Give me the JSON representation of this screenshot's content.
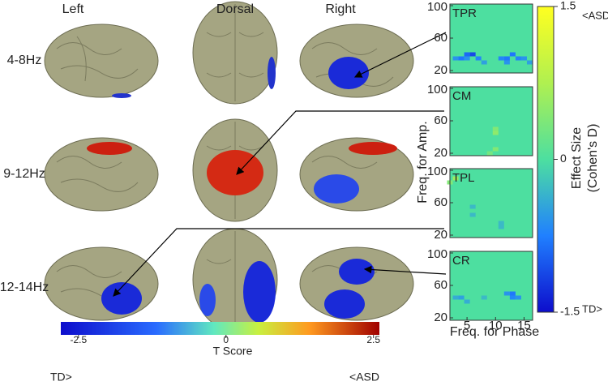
{
  "columns": [
    "Left",
    "Dorsal",
    "Right"
  ],
  "rows": [
    "4-8Hz",
    "9-12Hz",
    "12-14Hz"
  ],
  "t_colorbar": {
    "lim": [
      -2.8,
      2.6
    ],
    "ticks": [
      -2.5,
      0,
      2.5
    ],
    "label": "T Score",
    "left_note": "TD>",
    "right_note": "<ASD"
  },
  "heatmaps": {
    "xlim": [
      2,
      16.5
    ],
    "ylim": [
      17,
      102
    ],
    "xticks": [
      5,
      10,
      15
    ],
    "yticks": [
      20,
      60,
      100
    ],
    "ylabel": "Freq. for Amp.",
    "xlabel": "Freq. for Phase",
    "background": 0,
    "panels": [
      {
        "label": "TPR",
        "cells": [
          [
            3,
            35,
            -0.6
          ],
          [
            4,
            35,
            -0.8
          ],
          [
            5,
            35,
            -0.6
          ],
          [
            5,
            40,
            -0.9
          ],
          [
            6,
            40,
            -1.1
          ],
          [
            7,
            35,
            -0.7
          ],
          [
            8,
            30,
            -0.5
          ],
          [
            11,
            35,
            -0.7
          ],
          [
            12,
            30,
            -0.6
          ],
          [
            12,
            35,
            -0.8
          ],
          [
            13,
            40,
            -0.8
          ],
          [
            14,
            35,
            -0.7
          ],
          [
            15,
            35,
            -0.6
          ],
          [
            16,
            30,
            -0.5
          ]
        ]
      },
      {
        "label": "CM",
        "cells": [
          [
            10,
            50,
            0.4
          ],
          [
            10,
            45,
            0.5
          ],
          [
            10,
            25,
            0.4
          ],
          [
            9,
            20,
            0.3
          ]
        ]
      },
      {
        "label": "TPL",
        "cells": [
          [
            2,
            85,
            0.4
          ],
          [
            3,
            90,
            0.6
          ],
          [
            6,
            55,
            -0.3
          ],
          [
            6,
            45,
            -0.3
          ],
          [
            11,
            35,
            -0.3
          ],
          [
            11,
            30,
            -0.3
          ]
        ]
      },
      {
        "label": "CR",
        "cells": [
          [
            3,
            45,
            -0.4
          ],
          [
            4,
            45,
            -0.5
          ],
          [
            5,
            40,
            -0.4
          ],
          [
            8,
            45,
            -0.3
          ],
          [
            12,
            50,
            -0.6
          ],
          [
            13,
            45,
            -0.7
          ],
          [
            13,
            50,
            -0.8
          ],
          [
            14,
            45,
            -0.6
          ]
        ]
      }
    ]
  },
  "effect_colorbar": {
    "lim": [
      -1.5,
      1.5
    ],
    "ticks": [
      -1.5,
      0,
      1.5
    ],
    "label_line1": "Effect Size",
    "label_line2": "(Cohen's D)",
    "top_note": "<ASD",
    "bottom_note": "TD>"
  }
}
